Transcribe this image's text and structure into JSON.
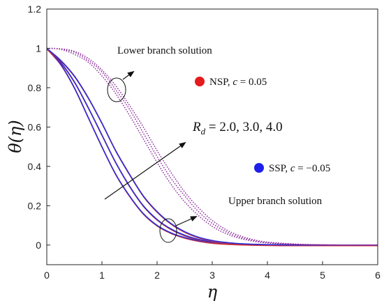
{
  "chart_data": {
    "type": "line",
    "title": "",
    "xlabel": "η",
    "ylabel": "θ(η)",
    "xlim": [
      0,
      6
    ],
    "ylim": [
      -0.1,
      1.2
    ],
    "x_ticks": [
      "0",
      "1",
      "2",
      "3",
      "4",
      "5",
      "6"
    ],
    "y_ticks": [
      "0",
      "0.2",
      "0.4",
      "0.6",
      "0.8",
      "1",
      "1.2"
    ],
    "x": [
      0,
      0.25,
      0.5,
      0.75,
      1.0,
      1.25,
      1.5,
      1.75,
      2.0,
      2.25,
      2.5,
      2.75,
      3.0,
      3.25,
      3.5,
      3.75,
      4.0,
      4.5,
      5.0,
      5.5,
      6.0
    ],
    "series": [
      {
        "style": "solid",
        "color": "#2a2ad8",
        "values": [
          1.0,
          0.92,
          0.8,
          0.65,
          0.5,
          0.36,
          0.25,
          0.16,
          0.1,
          0.062,
          0.038,
          0.022,
          0.012,
          0.007,
          0.004,
          0.002,
          0.001,
          0.0,
          0.0,
          0.0,
          0.0
        ]
      },
      {
        "style": "solid",
        "color": "#2a2ad8",
        "values": [
          1.0,
          0.93,
          0.83,
          0.7,
          0.56,
          0.42,
          0.3,
          0.2,
          0.13,
          0.082,
          0.05,
          0.029,
          0.016,
          0.009,
          0.005,
          0.003,
          0.001,
          0.0,
          0.0,
          0.0,
          0.0
        ]
      },
      {
        "style": "solid",
        "color": "#2a2ad8",
        "values": [
          1.0,
          0.94,
          0.86,
          0.75,
          0.62,
          0.48,
          0.36,
          0.25,
          0.17,
          0.11,
          0.068,
          0.04,
          0.023,
          0.013,
          0.007,
          0.004,
          0.002,
          0.0,
          0.0,
          0.0,
          0.0
        ]
      },
      {
        "style": "dotted",
        "color": "#8a2a9a",
        "values": [
          1.0,
          0.995,
          0.97,
          0.93,
          0.86,
          0.77,
          0.66,
          0.54,
          0.42,
          0.31,
          0.22,
          0.15,
          0.095,
          0.058,
          0.034,
          0.019,
          0.01,
          0.003,
          0.001,
          0.0,
          0.0
        ]
      },
      {
        "style": "dotted",
        "color": "#8a2a9a",
        "values": [
          1.0,
          0.997,
          0.98,
          0.94,
          0.88,
          0.79,
          0.69,
          0.57,
          0.45,
          0.34,
          0.25,
          0.17,
          0.11,
          0.068,
          0.04,
          0.023,
          0.012,
          0.004,
          0.001,
          0.0,
          0.0
        ]
      },
      {
        "style": "dotted",
        "color": "#8a2a9a",
        "values": [
          1.0,
          0.998,
          0.985,
          0.95,
          0.89,
          0.81,
          0.71,
          0.6,
          0.48,
          0.37,
          0.27,
          0.19,
          0.125,
          0.078,
          0.047,
          0.027,
          0.015,
          0.005,
          0.001,
          0.0,
          0.0
        ]
      }
    ],
    "annotations": {
      "lower": "Lower branch solution",
      "upper": "Upper branch solution",
      "param": "R_d = 2.0, 3.0, 4.0"
    },
    "legend": [
      {
        "label": "NSP, c = 0.05",
        "color": "#e41a1c",
        "placement": "upper-right"
      },
      {
        "label": "SSP, c = −0.05",
        "color": "#1f1fe8",
        "placement": "middle-right"
      }
    ]
  }
}
